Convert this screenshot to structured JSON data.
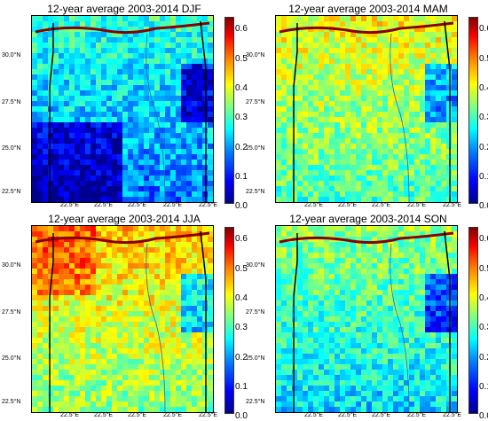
{
  "panels": [
    {
      "title": "12-year average 2003-2014 DJF",
      "season": "DJF"
    },
    {
      "title": "12-year average 2003-2014 MAM",
      "season": "MAM"
    },
    {
      "title": "12-year average 2003-2014 JJA",
      "season": "JJA"
    },
    {
      "title": "12-year average 2003-2014 SON",
      "season": "SON"
    }
  ],
  "lat_labels": [
    "30.0°N",
    "27.5°N",
    "25.0°N",
    "22.5°N"
  ],
  "lon_labels": [
    "22.5°E",
    "22.5°E",
    "22.5°E",
    "22.5°E",
    "22.5°E"
  ],
  "colorbar_ticks": [
    "0.6",
    "0.5",
    "0.4",
    "0.3",
    "0.2",
    "0.1",
    "0.0"
  ],
  "colorbar_range": [
    0.0,
    0.6
  ],
  "colormap": [
    "#00008f",
    "#0000ff",
    "#0080ff",
    "#00ffff",
    "#80ff80",
    "#ffff00",
    "#ff8000",
    "#ff0000",
    "#800000"
  ]
}
